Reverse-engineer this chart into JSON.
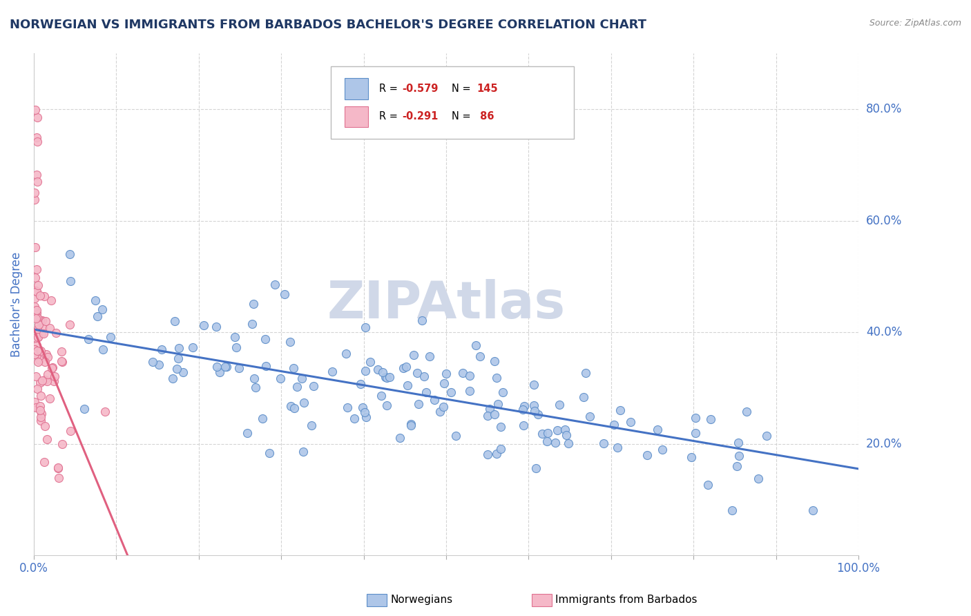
{
  "title": "NORWEGIAN VS IMMIGRANTS FROM BARBADOS BACHELOR'S DEGREE CORRELATION CHART",
  "source": "Source: ZipAtlas.com",
  "ylabel": "Bachelor's Degree",
  "blue_color": "#aec6e8",
  "pink_color": "#f5b8c8",
  "blue_edge_color": "#5b8dc8",
  "pink_edge_color": "#e07090",
  "blue_line_color": "#4472c4",
  "pink_line_color": "#e06080",
  "title_color": "#1f3864",
  "axis_label_color": "#4472c4",
  "watermark_color": "#d0d8e8",
  "background_color": "#ffffff",
  "grid_color": "#d0d0d0",
  "legend_r1_val": "-0.579",
  "legend_n1_val": "145",
  "legend_r2_val": "-0.291",
  "legend_n2_val": "86",
  "red_text_color": "#cc2222"
}
